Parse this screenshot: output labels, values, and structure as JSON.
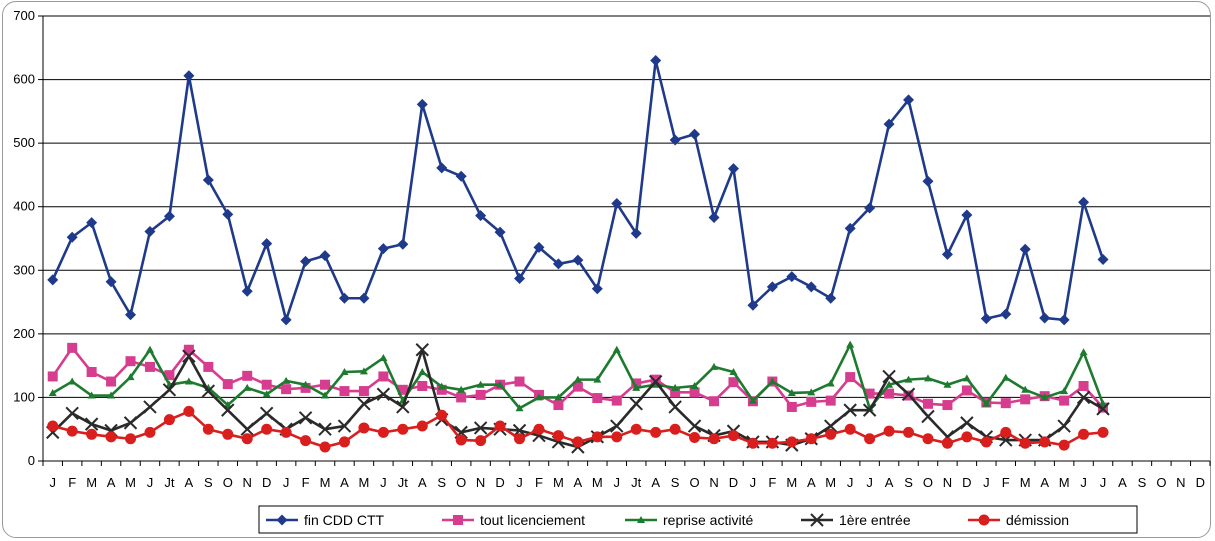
{
  "chart_data": {
    "type": "line",
    "title": "",
    "xlabel": "",
    "ylabel": "",
    "ylim": [
      0,
      700
    ],
    "yticks": [
      0,
      100,
      200,
      300,
      400,
      500,
      600,
      700
    ],
    "grid": "horizontal",
    "legend_position": "bottom",
    "categories": [
      "J",
      "F",
      "M",
      "A",
      "M",
      "J",
      "Jt",
      "A",
      "S",
      "O",
      "N",
      "D",
      "J",
      "F",
      "M",
      "A",
      "M",
      "J",
      "Jt",
      "A",
      "S",
      "O",
      "N",
      "D",
      "J",
      "F",
      "M",
      "A",
      "M",
      "J",
      "Jt",
      "A",
      "S",
      "O",
      "N",
      "D",
      "J",
      "F",
      "M",
      "A",
      "M",
      "J",
      "J",
      "A",
      "S",
      "O",
      "N",
      "D",
      "J",
      "F",
      "M",
      "A",
      "M",
      "J",
      "J",
      "A",
      "S",
      "O",
      "N",
      "D"
    ],
    "series": [
      {
        "name": "fin CDD CTT",
        "color": "#1f3a8a",
        "marker": "diamond",
        "values": [
          285,
          352,
          375,
          282,
          230,
          361,
          385,
          606,
          442,
          388,
          267,
          342,
          222,
          314,
          323,
          256,
          256,
          334,
          341,
          561,
          461,
          448,
          386,
          360,
          287,
          336,
          310,
          316,
          271,
          405,
          358,
          630,
          505,
          514,
          383,
          460,
          245,
          274,
          290,
          274,
          256,
          366,
          398,
          530,
          568,
          440,
          325,
          387,
          224,
          231,
          333,
          225,
          222,
          407,
          317,
          null,
          null,
          null,
          null,
          null
        ]
      },
      {
        "name": "tout licenciement",
        "color": "#d63d8f",
        "marker": "square",
        "values": [
          133,
          178,
          140,
          125,
          157,
          148,
          135,
          175,
          148,
          121,
          134,
          120,
          113,
          115,
          120,
          110,
          110,
          133,
          112,
          118,
          112,
          100,
          104,
          120,
          125,
          104,
          88,
          117,
          99,
          95,
          122,
          128,
          108,
          108,
          94,
          124,
          94,
          125,
          85,
          93,
          95,
          132,
          106,
          106,
          103,
          90,
          88,
          111,
          92,
          91,
          97,
          102,
          95,
          118,
          84,
          null,
          null,
          null,
          null,
          null
        ]
      },
      {
        "name": "reprise activité",
        "color": "#1d7a2e",
        "marker": "triangle",
        "values": [
          107,
          125,
          103,
          103,
          132,
          175,
          120,
          125,
          115,
          88,
          115,
          105,
          126,
          120,
          103,
          140,
          141,
          162,
          95,
          140,
          117,
          112,
          120,
          120,
          83,
          100,
          100,
          128,
          128,
          175,
          115,
          120,
          115,
          118,
          148,
          140,
          95,
          125,
          107,
          108,
          122,
          183,
          83,
          120,
          128,
          130,
          120,
          130,
          90,
          131,
          112,
          100,
          110,
          171,
          90,
          null,
          null,
          null,
          null,
          null
        ]
      },
      {
        "name": "1ère entrée",
        "color": "#2a2a2a",
        "marker": "x",
        "values": [
          45,
          75,
          58,
          48,
          60,
          85,
          112,
          165,
          110,
          80,
          50,
          75,
          50,
          68,
          50,
          55,
          90,
          105,
          85,
          175,
          65,
          45,
          52,
          50,
          48,
          40,
          30,
          22,
          38,
          55,
          90,
          125,
          85,
          55,
          40,
          47,
          30,
          30,
          25,
          35,
          55,
          80,
          80,
          133,
          105,
          70,
          38,
          60,
          38,
          33,
          33,
          33,
          55,
          100,
          82,
          null,
          null,
          null,
          null,
          null
        ]
      },
      {
        "name": "démission",
        "color": "#d91e1e",
        "marker": "circle",
        "values": [
          55,
          47,
          42,
          38,
          35,
          45,
          65,
          78,
          50,
          42,
          35,
          50,
          45,
          32,
          22,
          30,
          52,
          45,
          50,
          55,
          72,
          33,
          32,
          55,
          35,
          50,
          40,
          30,
          38,
          38,
          50,
          45,
          50,
          37,
          35,
          40,
          28,
          28,
          30,
          35,
          42,
          50,
          35,
          47,
          45,
          35,
          28,
          38,
          30,
          45,
          28,
          30,
          25,
          42,
          45,
          null,
          null,
          null,
          null,
          null
        ]
      }
    ]
  }
}
